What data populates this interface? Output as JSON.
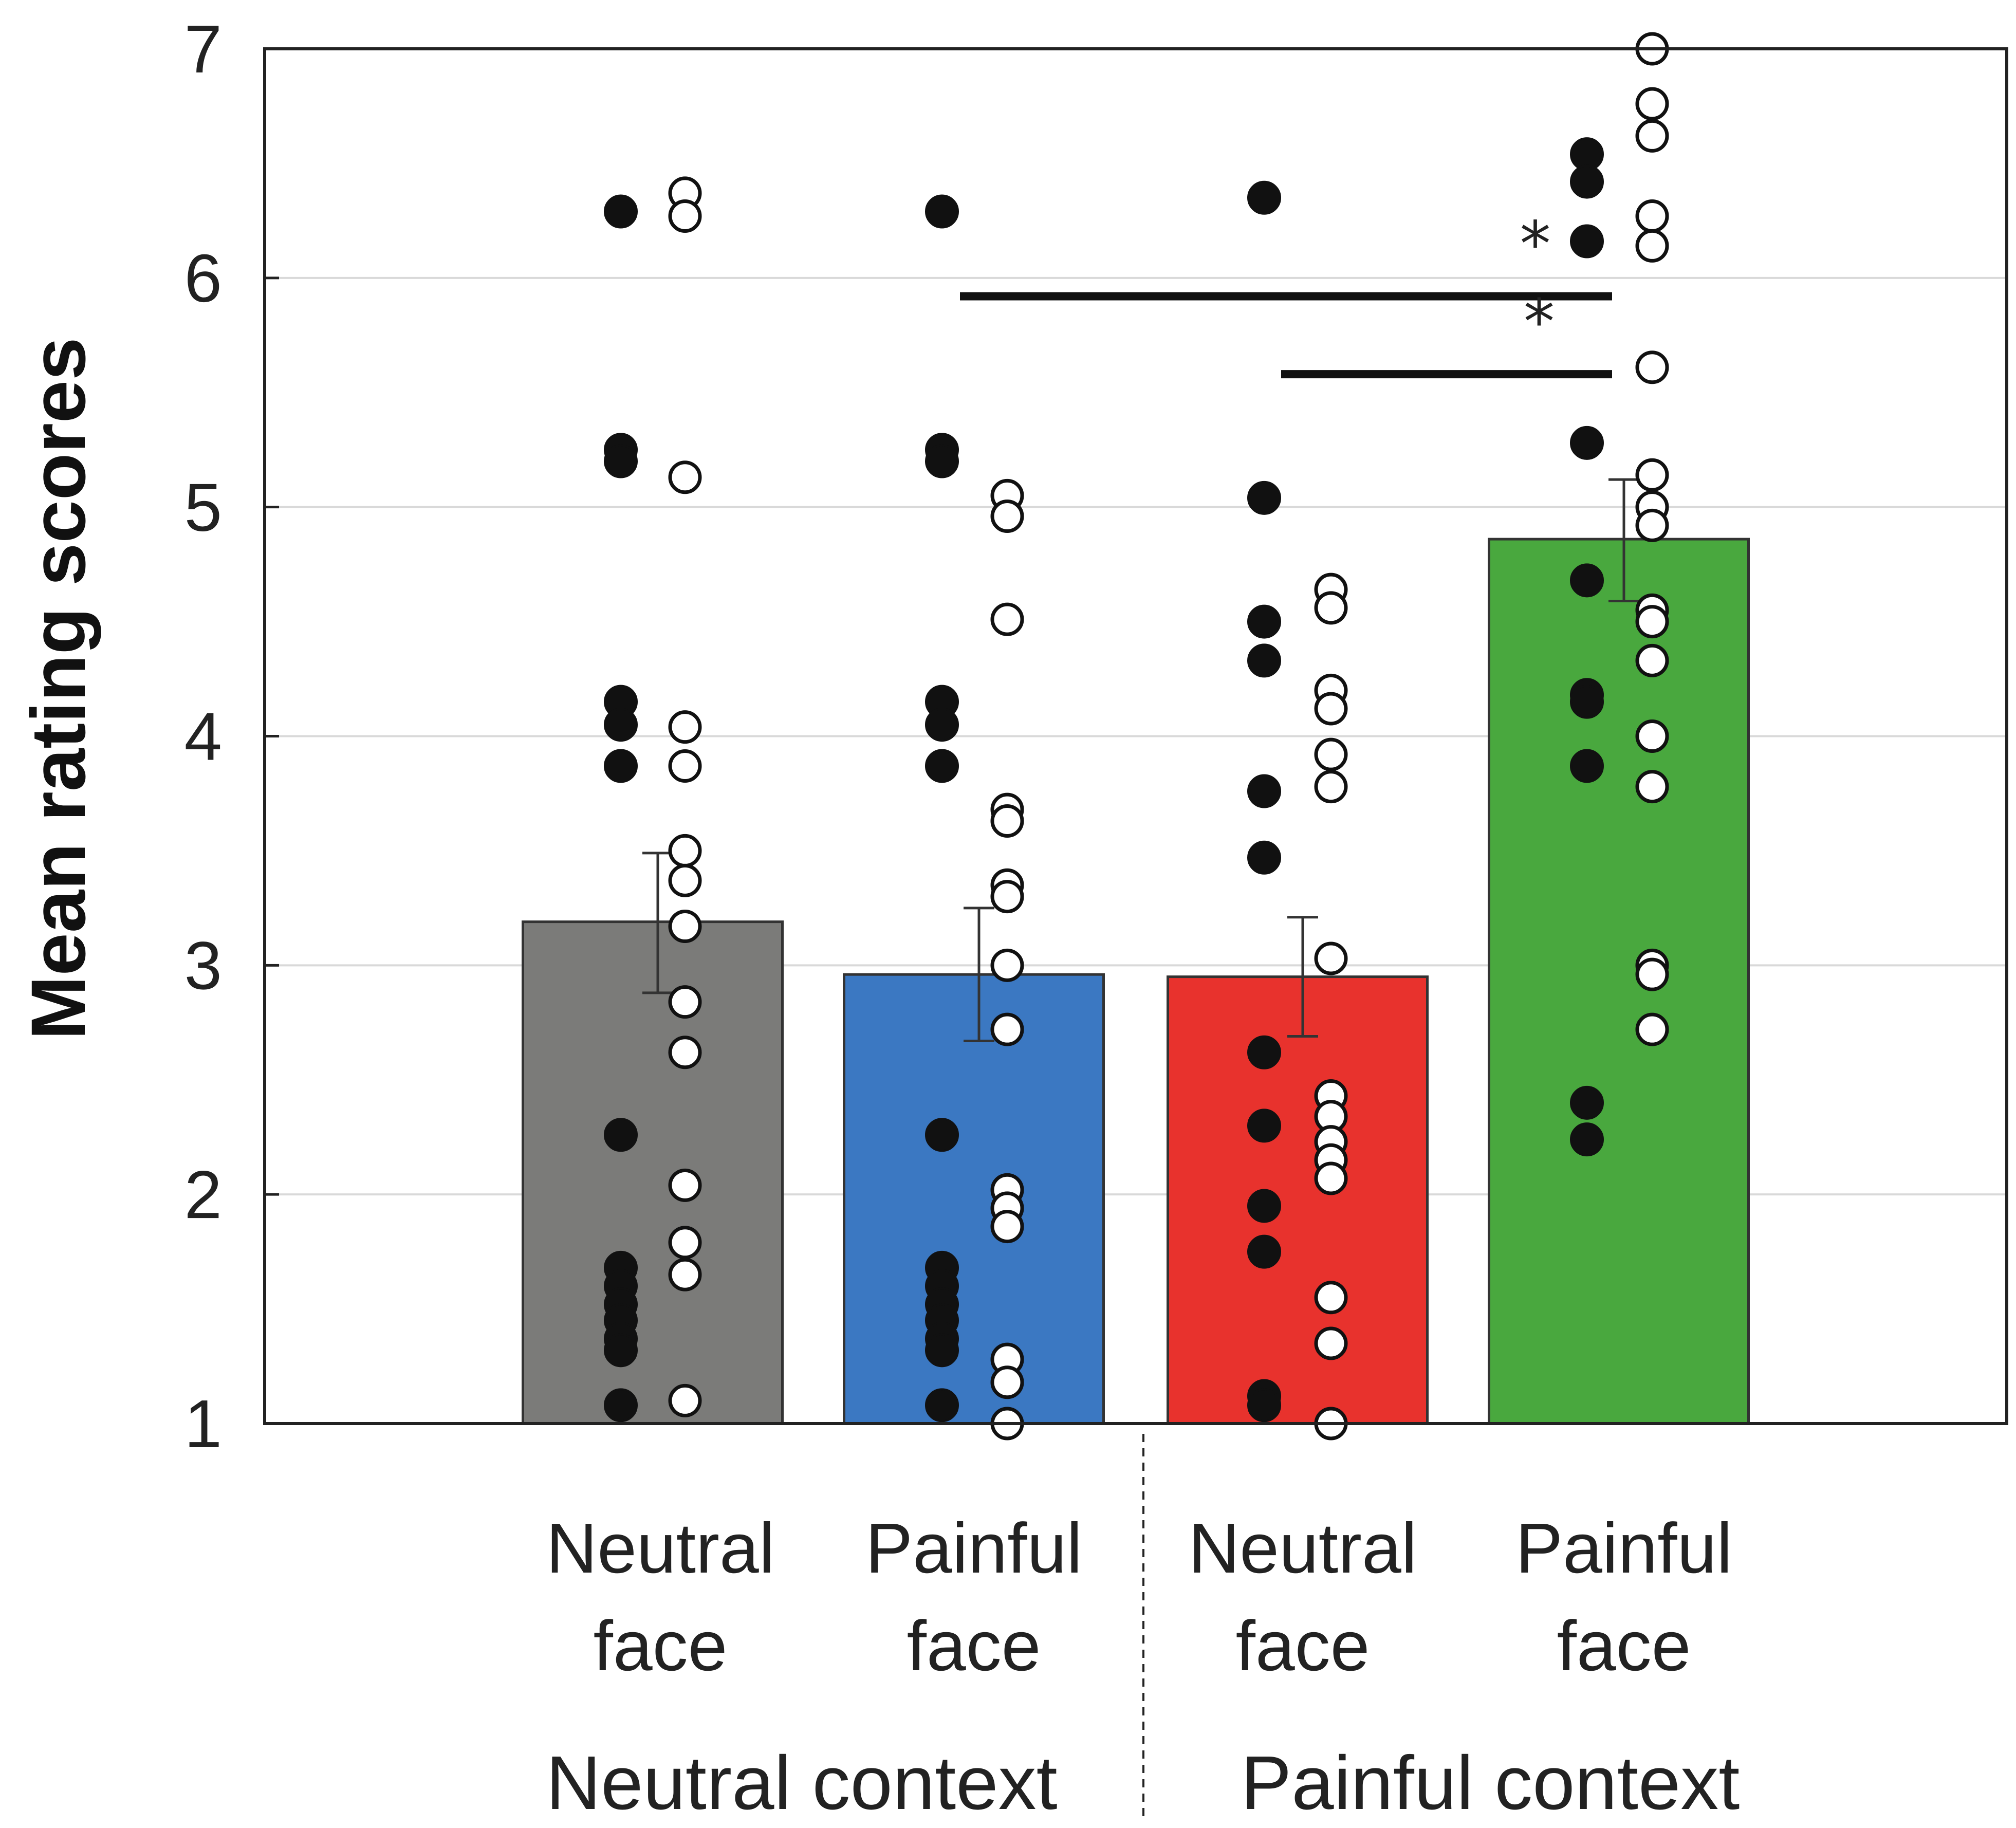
{
  "chart_data": {
    "type": "bar",
    "title": "",
    "ylabel": "Mean rating scores",
    "xlabel": "",
    "ylim": [
      1,
      7
    ],
    "yticks": [
      "1",
      "2",
      "3",
      "4",
      "5",
      "6",
      "7"
    ],
    "grid": true,
    "categories": [
      {
        "line1": "Neutral",
        "line2": "face",
        "group": "Neutral context"
      },
      {
        "line1": "Painful",
        "line2": "face",
        "group": "Neutral context"
      },
      {
        "line1": "Neutral",
        "line2": "face",
        "group": "Painful context"
      },
      {
        "line1": "Painful",
        "line2": "face",
        "group": "Painful context"
      }
    ],
    "groups": [
      "Neutral context",
      "Painful context"
    ],
    "bars": [
      {
        "value": 3.19,
        "err_low": 2.88,
        "err_high": 3.49,
        "color": "#7b7b79"
      },
      {
        "value": 2.96,
        "err_low": 2.67,
        "err_high": 3.25,
        "color": "#3b78c2"
      },
      {
        "value": 2.95,
        "err_low": 2.69,
        "err_high": 3.21,
        "color": "#e8322d"
      },
      {
        "value": 4.86,
        "err_low": 4.59,
        "err_high": 5.12,
        "color": "#49a83e"
      }
    ],
    "filled_points": [
      [
        6.29,
        5.25,
        5.2,
        4.15,
        4.05,
        3.87,
        2.26,
        1.68,
        1.6,
        1.52,
        1.45,
        1.37,
        1.32,
        1.08
      ],
      [
        6.29,
        5.25,
        5.2,
        4.15,
        4.05,
        3.87,
        2.26,
        1.68,
        1.6,
        1.52,
        1.45,
        1.37,
        1.32,
        1.08
      ],
      [
        6.35,
        5.04,
        4.5,
        4.33,
        3.76,
        3.47,
        2.62,
        2.3,
        1.95,
        1.75,
        1.12,
        1.08
      ],
      [
        6.54,
        6.42,
        6.16,
        5.28,
        4.68,
        4.18,
        4.15,
        3.87,
        2.4,
        2.24
      ]
    ],
    "open_points": [
      [
        6.37,
        6.27,
        5.13,
        4.04,
        3.87,
        3.5,
        3.37,
        3.17,
        2.84,
        2.62,
        2.04,
        1.79,
        1.65,
        1.1
      ],
      [
        5.05,
        4.96,
        4.51,
        3.68,
        3.63,
        3.35,
        3.3,
        3.0,
        2.72,
        2.02,
        1.94,
        1.86,
        1.28,
        1.18,
        1.0
      ],
      [
        4.64,
        4.56,
        4.2,
        4.12,
        3.92,
        3.78,
        3.03,
        2.43,
        2.34,
        2.23,
        2.15,
        2.07,
        1.55,
        1.35,
        1.0
      ],
      [
        7.0,
        6.76,
        6.62,
        6.27,
        6.14,
        5.61,
        5.14,
        5.0,
        4.92,
        4.55,
        4.5,
        4.33,
        4.0,
        3.78,
        3.0,
        2.96,
        2.72
      ]
    ],
    "significance": [
      {
        "from": 1,
        "to": 3,
        "y": 5.92,
        "label": "*"
      },
      {
        "from": 2,
        "to": 3,
        "y": 5.58,
        "label": "*"
      }
    ]
  }
}
